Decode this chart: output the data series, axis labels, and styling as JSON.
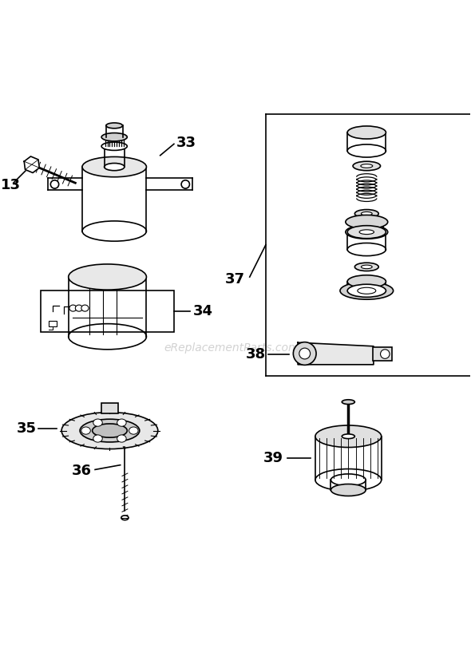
{
  "background_color": "#ffffff",
  "watermark": "eReplacementParts.com",
  "line_color": "#000000",
  "line_width": 1.2
}
